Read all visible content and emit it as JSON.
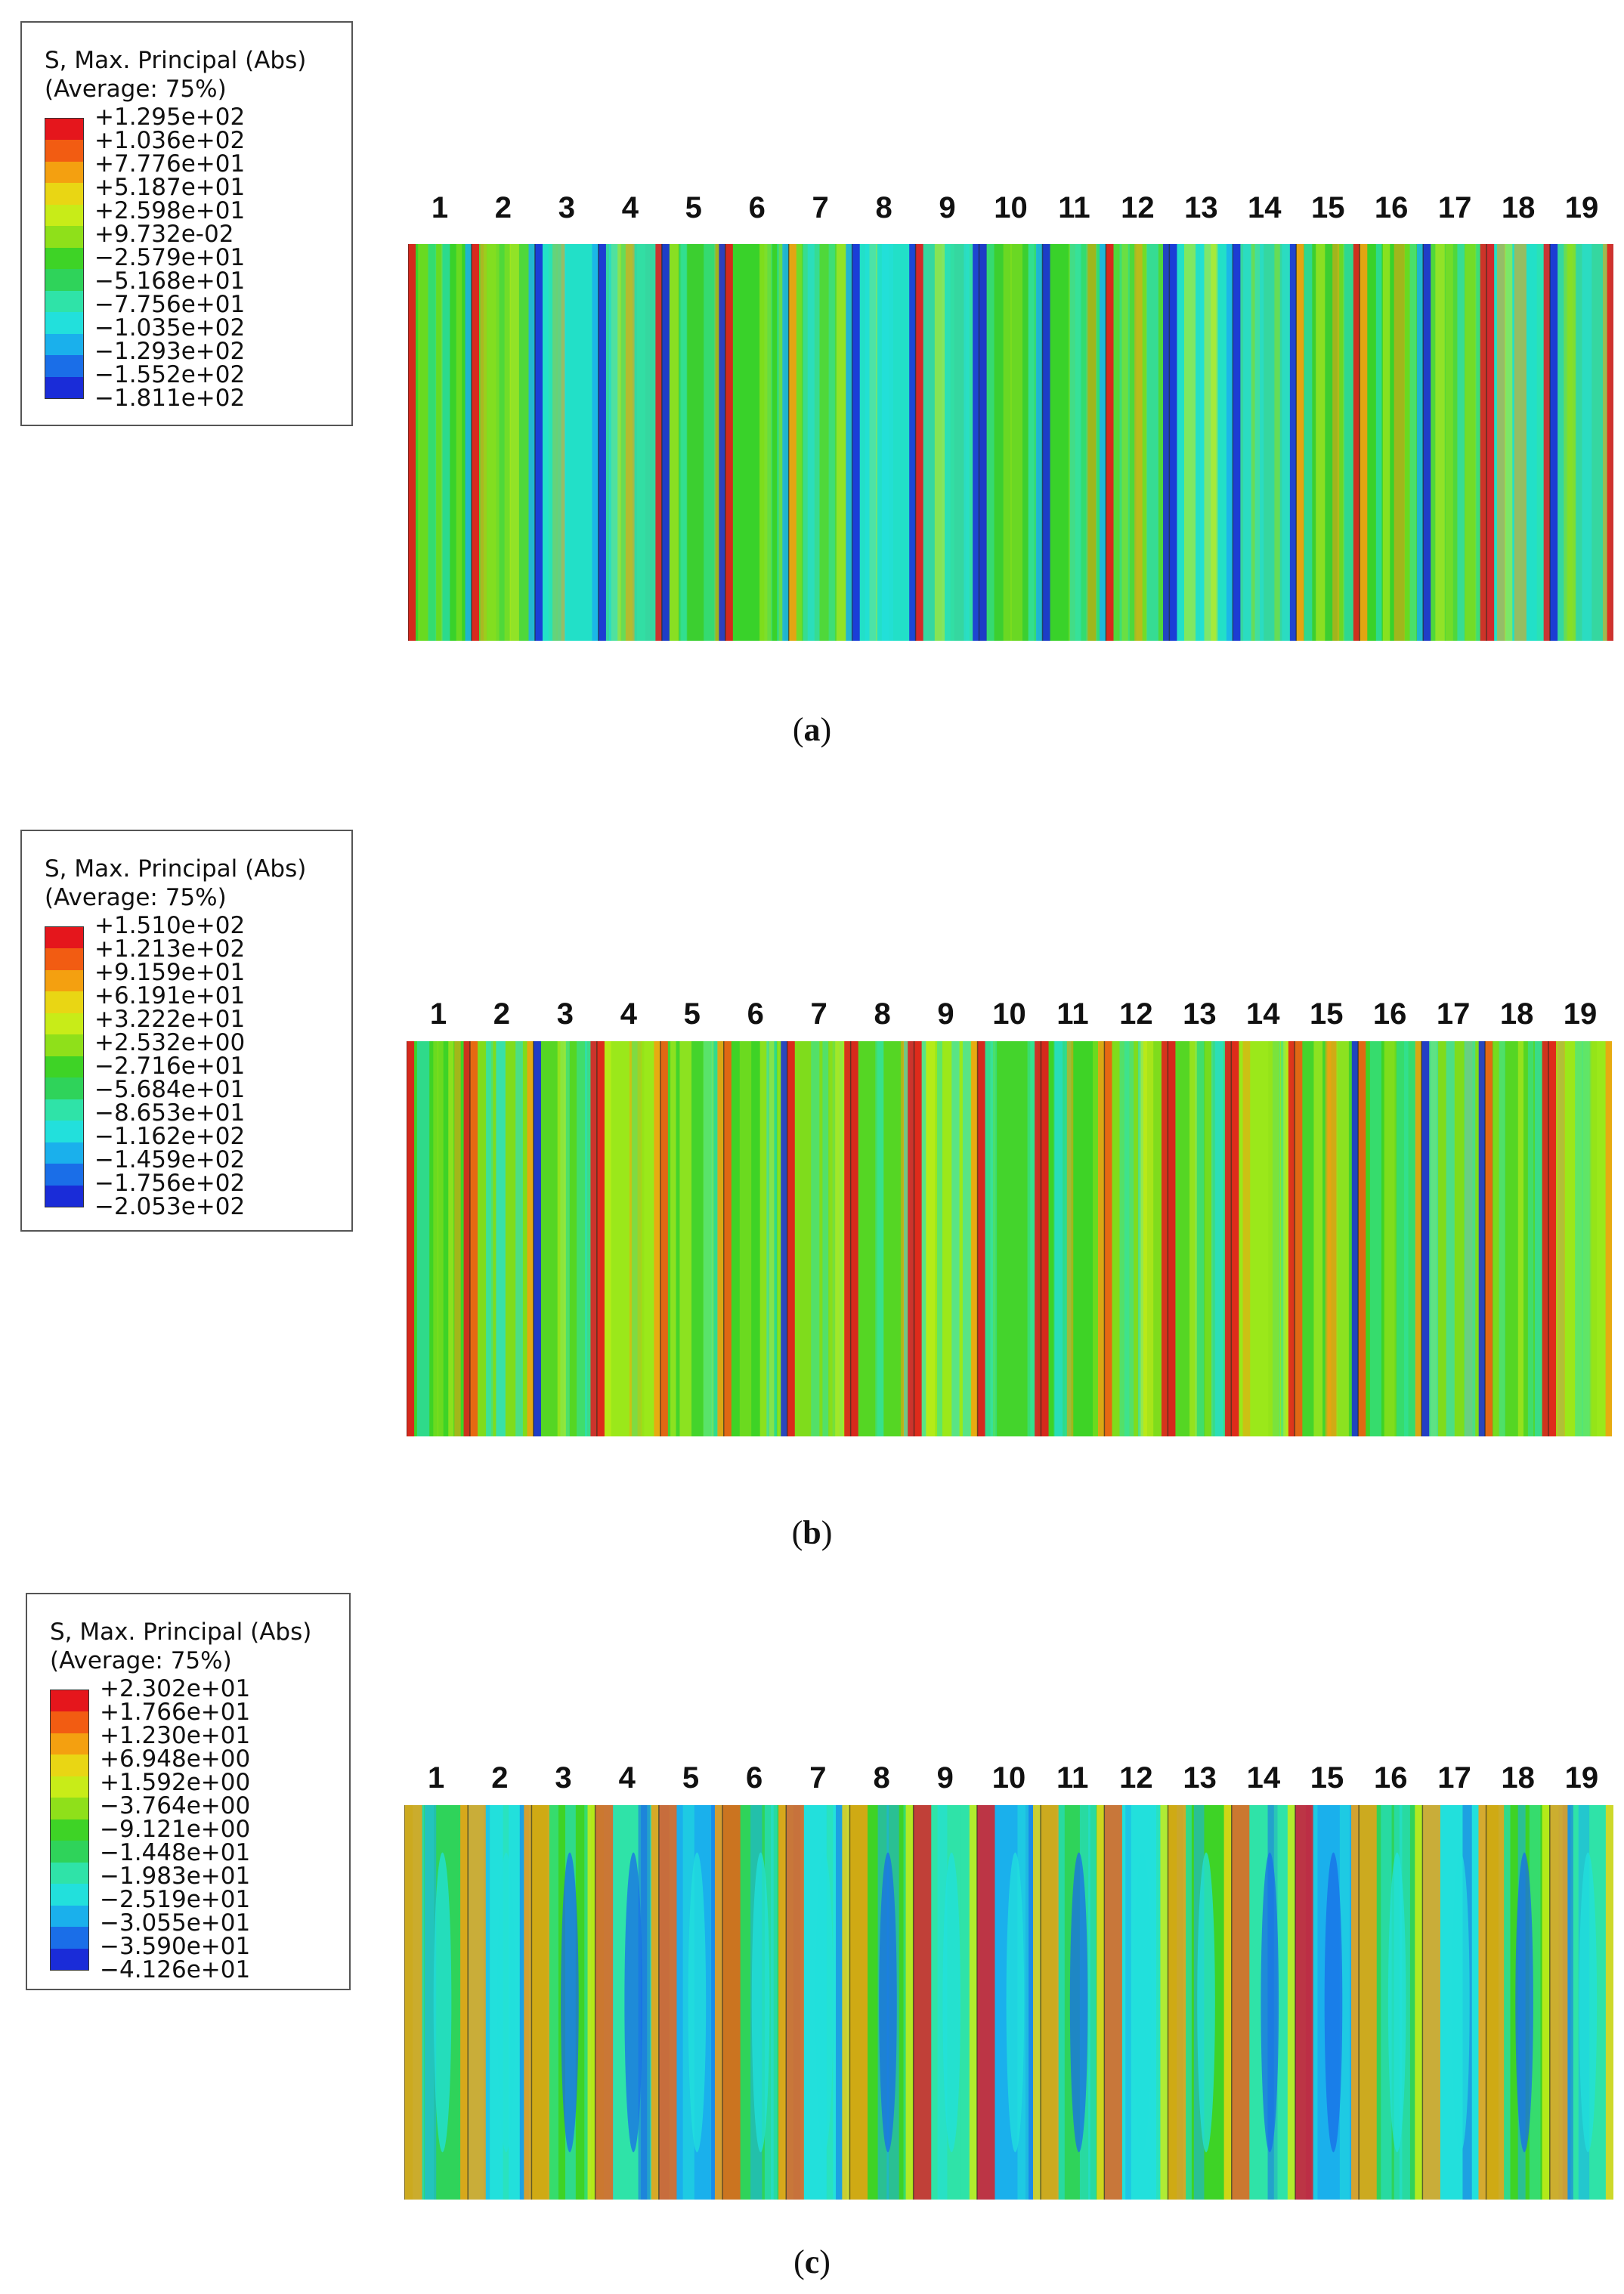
{
  "figures": [
    {
      "id": "a",
      "caption_letter": "a",
      "legend": {
        "title": "S, Max. Principal (Abs)",
        "subtitle": "(Average: 75%)",
        "values": [
          "+1.295e+02",
          "+1.036e+02",
          "+7.776e+01",
          "+5.187e+01",
          "+2.598e+01",
          "+9.732e-02",
          "−2.579e+01",
          "−5.168e+01",
          "−7.756e+01",
          "−1.035e+02",
          "−1.293e+02",
          "−1.552e+02",
          "−1.811e+02"
        ]
      },
      "columns": [
        "1",
        "2",
        "3",
        "4",
        "5",
        "6",
        "7",
        "8",
        "9",
        "10",
        "11",
        "12",
        "13",
        "14",
        "15",
        "16",
        "17",
        "18",
        "19"
      ]
    },
    {
      "id": "b",
      "caption_letter": "b",
      "legend": {
        "title": "S, Max. Principal (Abs)",
        "subtitle": "(Average: 75%)",
        "values": [
          "+1.510e+02",
          "+1.213e+02",
          "+9.159e+01",
          "+6.191e+01",
          "+3.222e+01",
          "+2.532e+00",
          "−2.716e+01",
          "−5.684e+01",
          "−8.653e+01",
          "−1.162e+02",
          "−1.459e+02",
          "−1.756e+02",
          "−2.053e+02"
        ]
      },
      "columns": [
        "1",
        "2",
        "3",
        "4",
        "5",
        "6",
        "7",
        "8",
        "9",
        "10",
        "11",
        "12",
        "13",
        "14",
        "15",
        "16",
        "17",
        "18",
        "19"
      ]
    },
    {
      "id": "c",
      "caption_letter": "c",
      "legend": {
        "title": "S, Max. Principal (Abs)",
        "subtitle": "(Average: 75%)",
        "values": [
          "+2.302e+01",
          "+1.766e+01",
          "+1.230e+01",
          "+6.948e+00",
          "+1.592e+00",
          "−3.764e+00",
          "−9.121e+00",
          "−1.448e+01",
          "−1.983e+01",
          "−2.519e+01",
          "−3.055e+01",
          "−3.590e+01",
          "−4.126e+01"
        ]
      },
      "columns": [
        "1",
        "2",
        "3",
        "4",
        "5",
        "6",
        "7",
        "8",
        "9",
        "10",
        "11",
        "12",
        "13",
        "14",
        "15",
        "16",
        "17",
        "18",
        "19"
      ]
    }
  ],
  "colors": {
    "scale": [
      "#e5161c",
      "#f25c12",
      "#f4a010",
      "#e9d614",
      "#c8ec18",
      "#8fe01a",
      "#3ed326",
      "#2fd35a",
      "#2fe3a8",
      "#22e0dc",
      "#1ab0ec",
      "#1a6ee8",
      "#1a2cd8"
    ]
  }
}
